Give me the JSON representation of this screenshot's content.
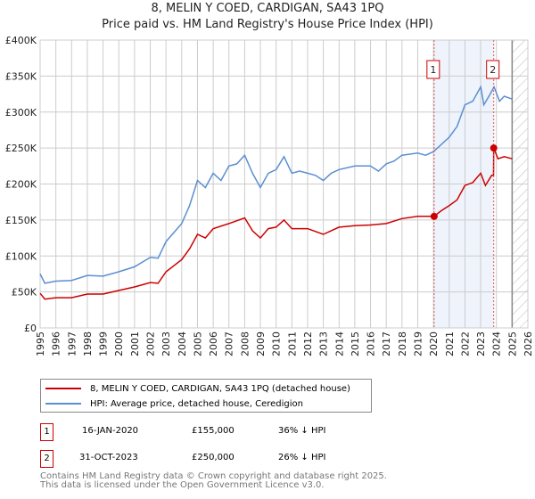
{
  "title_line1": "8, MELIN Y COED, CARDIGAN, SA43 1PQ",
  "title_line2": "Price paid vs. HM Land Registry's House Price Index (HPI)",
  "chart_data": {
    "type": "line",
    "xlim": [
      1995,
      2026
    ],
    "ylim": [
      0,
      400000
    ],
    "yticks": [
      0,
      50000,
      100000,
      150000,
      200000,
      250000,
      300000,
      350000,
      400000
    ],
    "ytick_labels": [
      "£0",
      "£50K",
      "£100K",
      "£150K",
      "£200K",
      "£250K",
      "£300K",
      "£350K",
      "£400K"
    ],
    "xticks": [
      1995,
      1996,
      1997,
      1998,
      1999,
      2000,
      2001,
      2002,
      2003,
      2004,
      2005,
      2006,
      2007,
      2008,
      2009,
      2010,
      2011,
      2012,
      2013,
      2014,
      2015,
      2016,
      2017,
      2018,
      2019,
      2020,
      2021,
      2022,
      2023,
      2024,
      2025,
      2026
    ],
    "grid": true,
    "forecast_hatch_from": 2025,
    "shaded_range": [
      2020.04,
      2023.83
    ],
    "series": [
      {
        "name": "8, MELIN Y COED, CARDIGAN, SA43 1PQ (detached house)",
        "color": "#cc0000",
        "x": [
          1995,
          1995.3,
          1996,
          1997,
          1998,
          1999,
          2000,
          2001,
          2002,
          2002.5,
          2003,
          2004,
          2004.5,
          2005,
          2005.5,
          2006,
          2007,
          2008,
          2008.5,
          2009,
          2009.5,
          2010,
          2010.5,
          2011,
          2012,
          2013,
          2014,
          2015,
          2016,
          2017,
          2018,
          2019,
          2020.04,
          2020.5,
          2021,
          2021.5,
          2022,
          2022.5,
          2023,
          2023.3,
          2023.7,
          2023.82,
          2023.83,
          2024.1,
          2024.5,
          2025
        ],
        "y": [
          48000,
          40000,
          42000,
          42000,
          47000,
          47000,
          52000,
          57000,
          63000,
          62000,
          78000,
          95000,
          110000,
          130000,
          125000,
          138000,
          145000,
          153000,
          135000,
          125000,
          138000,
          140000,
          150000,
          138000,
          138000,
          130000,
          140000,
          142000,
          143000,
          145000,
          152000,
          155000,
          155000,
          163000,
          170000,
          178000,
          198000,
          202000,
          215000,
          198000,
          212000,
          212000,
          250000,
          235000,
          238000,
          235000
        ]
      },
      {
        "name": "HPI: Average price, detached house, Ceredigion",
        "color": "#5b8fd1",
        "x": [
          1995,
          1995.3,
          1996,
          1997,
          1998,
          1999,
          2000,
          2001,
          2002,
          2002.5,
          2003,
          2004,
          2004.5,
          2005,
          2005.5,
          2006,
          2006.5,
          2007,
          2007.5,
          2008,
          2008.5,
          2009,
          2009.5,
          2010,
          2010.5,
          2011,
          2011.5,
          2012,
          2012.5,
          2013,
          2013.5,
          2014,
          2015,
          2016,
          2016.5,
          2017,
          2017.5,
          2018,
          2019,
          2019.5,
          2020,
          2020.5,
          2021,
          2021.5,
          2022,
          2022.5,
          2023,
          2023.2,
          2023.6,
          2023.85,
          2024.2,
          2024.5,
          2025
        ],
        "y": [
          75000,
          62000,
          65000,
          66000,
          73000,
          72000,
          78000,
          85000,
          98000,
          97000,
          120000,
          145000,
          170000,
          205000,
          195000,
          215000,
          205000,
          225000,
          228000,
          240000,
          215000,
          195000,
          215000,
          220000,
          238000,
          215000,
          218000,
          215000,
          212000,
          205000,
          215000,
          220000,
          225000,
          225000,
          218000,
          228000,
          232000,
          240000,
          243000,
          240000,
          245000,
          255000,
          265000,
          280000,
          310000,
          315000,
          335000,
          310000,
          325000,
          335000,
          315000,
          322000,
          318000
        ]
      }
    ],
    "annotations": [
      {
        "label": "1",
        "x": 2020.04,
        "y": 155000
      },
      {
        "label": "2",
        "x": 2023.83,
        "y": 250000
      }
    ]
  },
  "legend": [
    "8, MELIN Y COED, CARDIGAN, SA43 1PQ (detached house)",
    "HPI: Average price, detached house, Ceredigion"
  ],
  "transactions": [
    {
      "num": "1",
      "date": "16-JAN-2020",
      "price": "£155,000",
      "delta": "36% ↓ HPI"
    },
    {
      "num": "2",
      "date": "31-OCT-2023",
      "price": "£250,000",
      "delta": "26% ↓ HPI"
    }
  ],
  "footer_line1": "Contains HM Land Registry data © Crown copyright and database right 2025.",
  "footer_line2": "This data is licensed under the Open Government Licence v3.0."
}
